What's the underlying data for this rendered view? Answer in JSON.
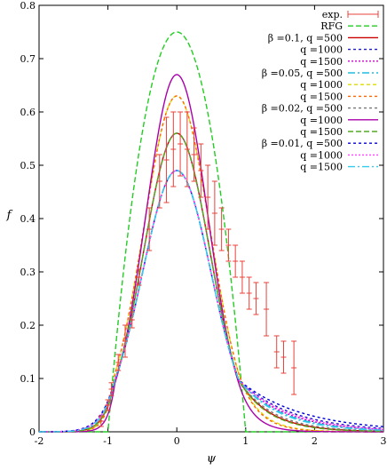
{
  "chart_data": {
    "type": "line",
    "xlabel": "ψ",
    "ylabel": "f",
    "xlim": [
      -2,
      3
    ],
    "ylim": [
      0,
      0.8
    ],
    "xticks": [
      "-2",
      "-1",
      "0",
      "1",
      "2",
      "3"
    ],
    "yticks": [
      "0",
      "0.1",
      "0.2",
      "0.3",
      "0.4",
      "0.5",
      "0.6",
      "0.7",
      "0.8"
    ],
    "grid": false,
    "legend_position": "top-right",
    "legend": [
      "exp.",
      "RFG",
      "β =0.1, q =500",
      "q =1000",
      "q =1500",
      "β =0.05, q =500",
      "q =1000",
      "q =1500",
      "β =0.02, q =500",
      "q =1000",
      "q =1500",
      "β =0.01, q =500",
      "q =1000",
      "q =1500"
    ],
    "experimental": {
      "color": "#e8413a",
      "points": [
        {
          "x": -1.1,
          "y": 0.02,
          "err": 0.01
        },
        {
          "x": -1.0,
          "y": 0.05,
          "err": 0.01
        },
        {
          "x": -0.95,
          "y": 0.08,
          "err": 0.012
        },
        {
          "x": -0.85,
          "y": 0.13,
          "err": 0.015
        },
        {
          "x": -0.75,
          "y": 0.17,
          "err": 0.03
        },
        {
          "x": -0.65,
          "y": 0.21,
          "err": 0.015
        },
        {
          "x": -0.55,
          "y": 0.29,
          "err": 0.015
        },
        {
          "x": -0.4,
          "y": 0.38,
          "err": 0.04
        },
        {
          "x": -0.25,
          "y": 0.47,
          "err": 0.05
        },
        {
          "x": -0.15,
          "y": 0.51,
          "err": 0.08
        },
        {
          "x": -0.05,
          "y": 0.53,
          "err": 0.07
        },
        {
          "x": 0.05,
          "y": 0.54,
          "err": 0.06
        },
        {
          "x": 0.15,
          "y": 0.53,
          "err": 0.07
        },
        {
          "x": 0.25,
          "y": 0.52,
          "err": 0.05
        },
        {
          "x": 0.35,
          "y": 0.49,
          "err": 0.05
        },
        {
          "x": 0.45,
          "y": 0.44,
          "err": 0.06
        },
        {
          "x": 0.55,
          "y": 0.41,
          "err": 0.06
        },
        {
          "x": 0.65,
          "y": 0.38,
          "err": 0.04
        },
        {
          "x": 0.75,
          "y": 0.35,
          "err": 0.03
        },
        {
          "x": 0.85,
          "y": 0.32,
          "err": 0.03
        },
        {
          "x": 0.95,
          "y": 0.29,
          "err": 0.03
        },
        {
          "x": 1.05,
          "y": 0.26,
          "err": 0.03
        },
        {
          "x": 1.15,
          "y": 0.25,
          "err": 0.03
        },
        {
          "x": 1.3,
          "y": 0.23,
          "err": 0.05
        },
        {
          "x": 1.45,
          "y": 0.15,
          "err": 0.03
        },
        {
          "x": 1.55,
          "y": 0.14,
          "err": 0.03
        },
        {
          "x": 1.7,
          "y": 0.12,
          "err": 0.05
        }
      ]
    },
    "series": [
      {
        "legend_index": 1,
        "color": "#22cc22",
        "dash": "6,3",
        "peak": 0.75,
        "type": "rfg"
      },
      {
        "legend_index": 2,
        "color": "#cc0000",
        "dash": "",
        "peak": 0.56,
        "w": 0.48,
        "k": 2.2,
        "tail": "cos"
      },
      {
        "legend_index": 3,
        "color": "#1a1acc",
        "dash": "3,3",
        "peak": 0.49,
        "w": 0.5,
        "k": 1.3,
        "tail": "cos"
      },
      {
        "legend_index": 4,
        "color": "#cc00cc",
        "dash": "2,2",
        "peak": 0.49,
        "w": 0.5,
        "k": 1.5,
        "tail": "cos"
      },
      {
        "legend_index": 5,
        "color": "#22bbdd",
        "dash": "8,3,2,3",
        "peak": 0.49,
        "w": 0.5,
        "k": 1.6,
        "tail": "cos"
      },
      {
        "legend_index": 6,
        "color": "#dddd00",
        "dash": "4,3",
        "peak": 0.63,
        "w": 0.48,
        "k": 3.4,
        "tail": "cos"
      },
      {
        "legend_index": 7,
        "color": "#ff6600",
        "dash": "3,3",
        "peak": 0.63,
        "w": 0.48,
        "k": 3.6,
        "tail": "cos"
      },
      {
        "legend_index": 8,
        "color": "#777777",
        "dash": "3,3",
        "peak": 0.56,
        "w": 0.48,
        "k": 2.0,
        "tail": "cos"
      },
      {
        "legend_index": 9,
        "color": "#aa00aa",
        "dash": "",
        "peak": 0.67,
        "w": 0.45,
        "k": 4.5,
        "tail": "cos"
      },
      {
        "legend_index": 10,
        "color": "#55aa22",
        "dash": "6,3",
        "peak": 0.56,
        "w": 0.48,
        "k": 2.3,
        "tail": "cos"
      },
      {
        "legend_index": 11,
        "color": "#0000dd",
        "dash": "3,3",
        "peak": 0.49,
        "w": 0.5,
        "k": 1.1,
        "tail": "cos"
      },
      {
        "legend_index": 12,
        "color": "#ff44ff",
        "dash": "2,2",
        "peak": 0.49,
        "w": 0.5,
        "k": 1.4,
        "tail": "cos"
      },
      {
        "legend_index": 13,
        "color": "#33ccee",
        "dash": "8,3,2,3",
        "peak": 0.49,
        "w": 0.5,
        "k": 1.7,
        "tail": "cos"
      }
    ]
  }
}
